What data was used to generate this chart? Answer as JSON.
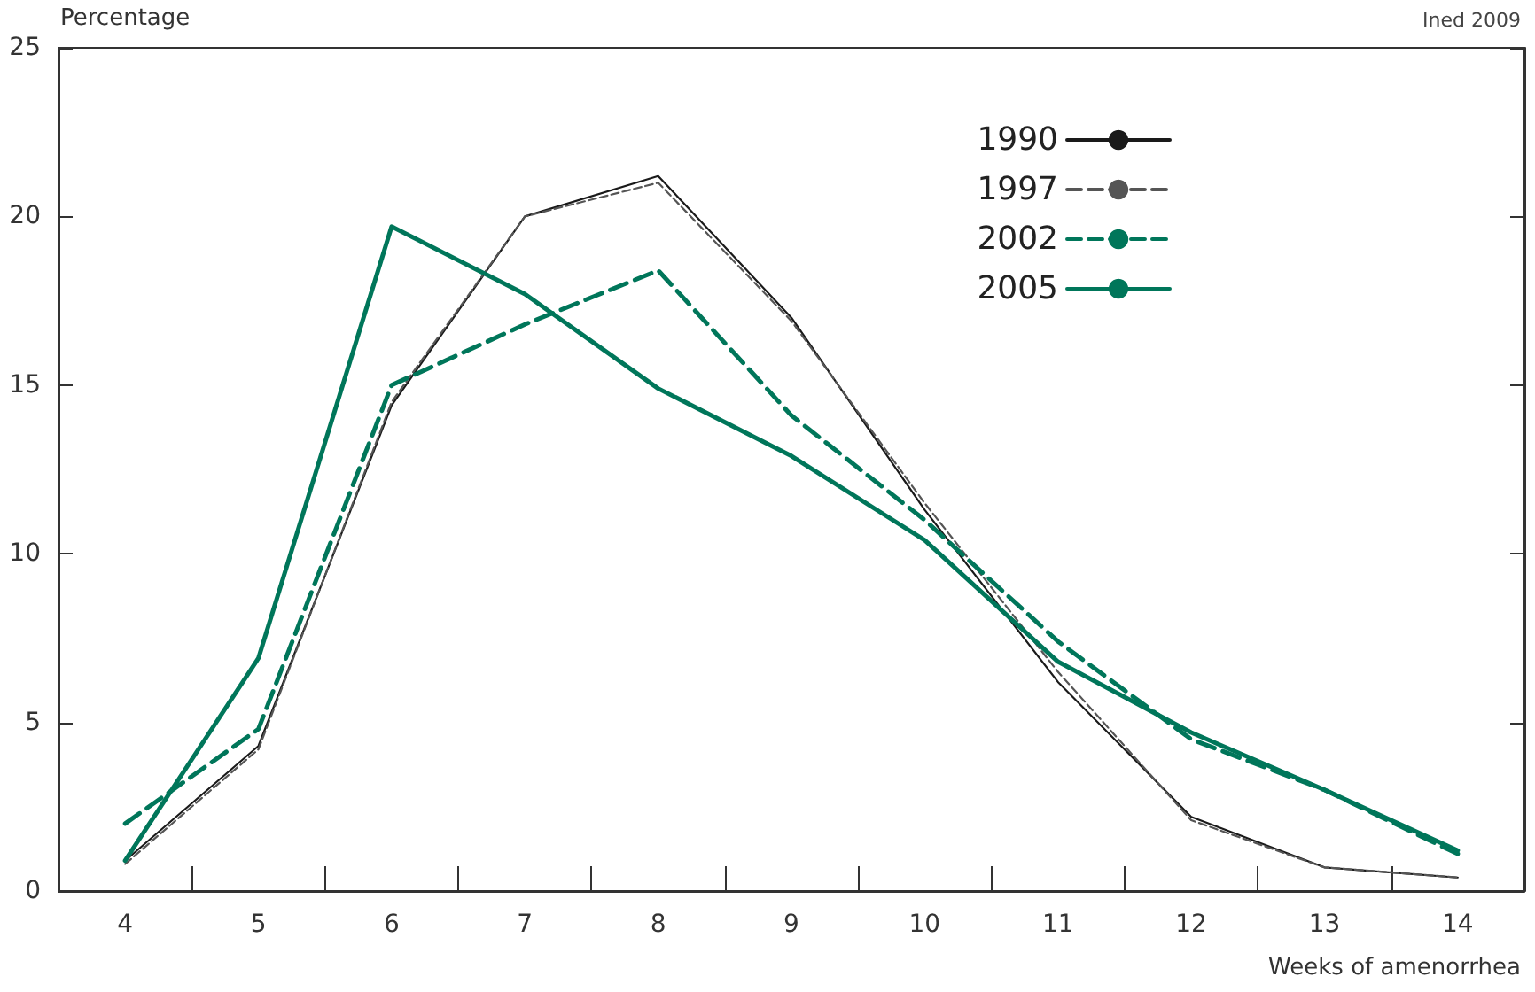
{
  "chart_data": {
    "type": "line",
    "ylabel": "Percentage",
    "xlabel": "Weeks of amenorrhea",
    "annotations": [
      "Ined 2009"
    ],
    "categories": [
      "4",
      "5",
      "6",
      "7",
      "8",
      "9",
      "10",
      "11",
      "12",
      "13",
      "14"
    ],
    "series": [
      {
        "name": "1990",
        "color": "#1a1a1a",
        "line_style": "solid",
        "values": [
          0.9,
          4.3,
          14.4,
          20.0,
          21.2,
          17.0,
          11.3,
          6.2,
          2.2,
          0.7,
          0.4
        ]
      },
      {
        "name": "1997",
        "color": "#555555",
        "line_style": "dashed",
        "values": [
          0.8,
          4.2,
          14.5,
          20.0,
          21.0,
          16.9,
          11.5,
          6.5,
          2.1,
          0.7,
          0.4
        ]
      },
      {
        "name": "2002",
        "color": "#00765a",
        "line_style": "dashed",
        "values": [
          2.0,
          4.8,
          15.0,
          16.8,
          18.4,
          14.1,
          11.0,
          7.4,
          4.5,
          3.0,
          1.1
        ]
      },
      {
        "name": "2005",
        "color": "#00765a",
        "line_style": "solid",
        "values": [
          0.9,
          6.9,
          19.7,
          17.7,
          14.9,
          12.9,
          10.4,
          6.8,
          4.7,
          3.0,
          1.2
        ]
      }
    ],
    "ylim": [
      0,
      25
    ],
    "yticks": [
      0,
      5,
      10,
      15,
      20,
      25
    ],
    "legend": "top right",
    "grid": false,
    "marker": "none"
  }
}
